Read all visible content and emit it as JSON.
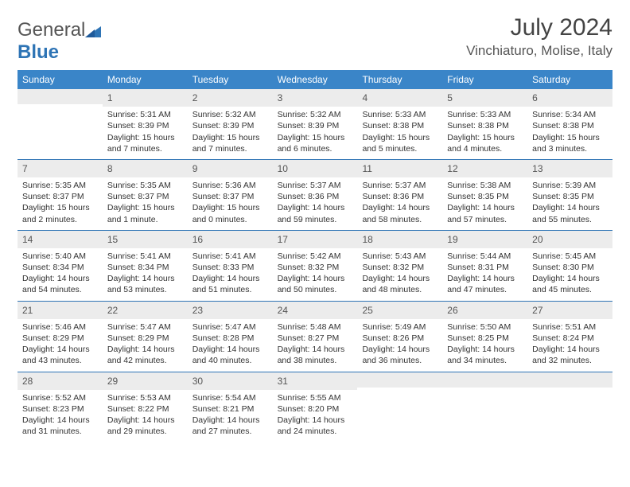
{
  "brand": {
    "textGray": "General",
    "textBlue": "Blue"
  },
  "title": {
    "month": "July 2024",
    "location": "Vinchiaturo, Molise, Italy"
  },
  "colors": {
    "headerBg": "#3a85c8",
    "headerText": "#ffffff",
    "weekBorder": "#2e74b5",
    "dayNumBg": "#ececec",
    "bodyText": "#333333",
    "titleText": "#444444"
  },
  "fonts": {
    "body": 10.5,
    "dayNum": 12,
    "header": 12,
    "titleMonth": 30,
    "titleLoc": 17
  },
  "weekdays": [
    "Sunday",
    "Monday",
    "Tuesday",
    "Wednesday",
    "Thursday",
    "Friday",
    "Saturday"
  ],
  "weeks": [
    [
      {
        "n": "",
        "sr": "",
        "ss": "",
        "dl": ""
      },
      {
        "n": "1",
        "sr": "Sunrise: 5:31 AM",
        "ss": "Sunset: 8:39 PM",
        "dl": "Daylight: 15 hours and 7 minutes."
      },
      {
        "n": "2",
        "sr": "Sunrise: 5:32 AM",
        "ss": "Sunset: 8:39 PM",
        "dl": "Daylight: 15 hours and 7 minutes."
      },
      {
        "n": "3",
        "sr": "Sunrise: 5:32 AM",
        "ss": "Sunset: 8:39 PM",
        "dl": "Daylight: 15 hours and 6 minutes."
      },
      {
        "n": "4",
        "sr": "Sunrise: 5:33 AM",
        "ss": "Sunset: 8:38 PM",
        "dl": "Daylight: 15 hours and 5 minutes."
      },
      {
        "n": "5",
        "sr": "Sunrise: 5:33 AM",
        "ss": "Sunset: 8:38 PM",
        "dl": "Daylight: 15 hours and 4 minutes."
      },
      {
        "n": "6",
        "sr": "Sunrise: 5:34 AM",
        "ss": "Sunset: 8:38 PM",
        "dl": "Daylight: 15 hours and 3 minutes."
      }
    ],
    [
      {
        "n": "7",
        "sr": "Sunrise: 5:35 AM",
        "ss": "Sunset: 8:37 PM",
        "dl": "Daylight: 15 hours and 2 minutes."
      },
      {
        "n": "8",
        "sr": "Sunrise: 5:35 AM",
        "ss": "Sunset: 8:37 PM",
        "dl": "Daylight: 15 hours and 1 minute."
      },
      {
        "n": "9",
        "sr": "Sunrise: 5:36 AM",
        "ss": "Sunset: 8:37 PM",
        "dl": "Daylight: 15 hours and 0 minutes."
      },
      {
        "n": "10",
        "sr": "Sunrise: 5:37 AM",
        "ss": "Sunset: 8:36 PM",
        "dl": "Daylight: 14 hours and 59 minutes."
      },
      {
        "n": "11",
        "sr": "Sunrise: 5:37 AM",
        "ss": "Sunset: 8:36 PM",
        "dl": "Daylight: 14 hours and 58 minutes."
      },
      {
        "n": "12",
        "sr": "Sunrise: 5:38 AM",
        "ss": "Sunset: 8:35 PM",
        "dl": "Daylight: 14 hours and 57 minutes."
      },
      {
        "n": "13",
        "sr": "Sunrise: 5:39 AM",
        "ss": "Sunset: 8:35 PM",
        "dl": "Daylight: 14 hours and 55 minutes."
      }
    ],
    [
      {
        "n": "14",
        "sr": "Sunrise: 5:40 AM",
        "ss": "Sunset: 8:34 PM",
        "dl": "Daylight: 14 hours and 54 minutes."
      },
      {
        "n": "15",
        "sr": "Sunrise: 5:41 AM",
        "ss": "Sunset: 8:34 PM",
        "dl": "Daylight: 14 hours and 53 minutes."
      },
      {
        "n": "16",
        "sr": "Sunrise: 5:41 AM",
        "ss": "Sunset: 8:33 PM",
        "dl": "Daylight: 14 hours and 51 minutes."
      },
      {
        "n": "17",
        "sr": "Sunrise: 5:42 AM",
        "ss": "Sunset: 8:32 PM",
        "dl": "Daylight: 14 hours and 50 minutes."
      },
      {
        "n": "18",
        "sr": "Sunrise: 5:43 AM",
        "ss": "Sunset: 8:32 PM",
        "dl": "Daylight: 14 hours and 48 minutes."
      },
      {
        "n": "19",
        "sr": "Sunrise: 5:44 AM",
        "ss": "Sunset: 8:31 PM",
        "dl": "Daylight: 14 hours and 47 minutes."
      },
      {
        "n": "20",
        "sr": "Sunrise: 5:45 AM",
        "ss": "Sunset: 8:30 PM",
        "dl": "Daylight: 14 hours and 45 minutes."
      }
    ],
    [
      {
        "n": "21",
        "sr": "Sunrise: 5:46 AM",
        "ss": "Sunset: 8:29 PM",
        "dl": "Daylight: 14 hours and 43 minutes."
      },
      {
        "n": "22",
        "sr": "Sunrise: 5:47 AM",
        "ss": "Sunset: 8:29 PM",
        "dl": "Daylight: 14 hours and 42 minutes."
      },
      {
        "n": "23",
        "sr": "Sunrise: 5:47 AM",
        "ss": "Sunset: 8:28 PM",
        "dl": "Daylight: 14 hours and 40 minutes."
      },
      {
        "n": "24",
        "sr": "Sunrise: 5:48 AM",
        "ss": "Sunset: 8:27 PM",
        "dl": "Daylight: 14 hours and 38 minutes."
      },
      {
        "n": "25",
        "sr": "Sunrise: 5:49 AM",
        "ss": "Sunset: 8:26 PM",
        "dl": "Daylight: 14 hours and 36 minutes."
      },
      {
        "n": "26",
        "sr": "Sunrise: 5:50 AM",
        "ss": "Sunset: 8:25 PM",
        "dl": "Daylight: 14 hours and 34 minutes."
      },
      {
        "n": "27",
        "sr": "Sunrise: 5:51 AM",
        "ss": "Sunset: 8:24 PM",
        "dl": "Daylight: 14 hours and 32 minutes."
      }
    ],
    [
      {
        "n": "28",
        "sr": "Sunrise: 5:52 AM",
        "ss": "Sunset: 8:23 PM",
        "dl": "Daylight: 14 hours and 31 minutes."
      },
      {
        "n": "29",
        "sr": "Sunrise: 5:53 AM",
        "ss": "Sunset: 8:22 PM",
        "dl": "Daylight: 14 hours and 29 minutes."
      },
      {
        "n": "30",
        "sr": "Sunrise: 5:54 AM",
        "ss": "Sunset: 8:21 PM",
        "dl": "Daylight: 14 hours and 27 minutes."
      },
      {
        "n": "31",
        "sr": "Sunrise: 5:55 AM",
        "ss": "Sunset: 8:20 PM",
        "dl": "Daylight: 14 hours and 24 minutes."
      },
      {
        "n": "",
        "sr": "",
        "ss": "",
        "dl": ""
      },
      {
        "n": "",
        "sr": "",
        "ss": "",
        "dl": ""
      },
      {
        "n": "",
        "sr": "",
        "ss": "",
        "dl": ""
      }
    ]
  ]
}
